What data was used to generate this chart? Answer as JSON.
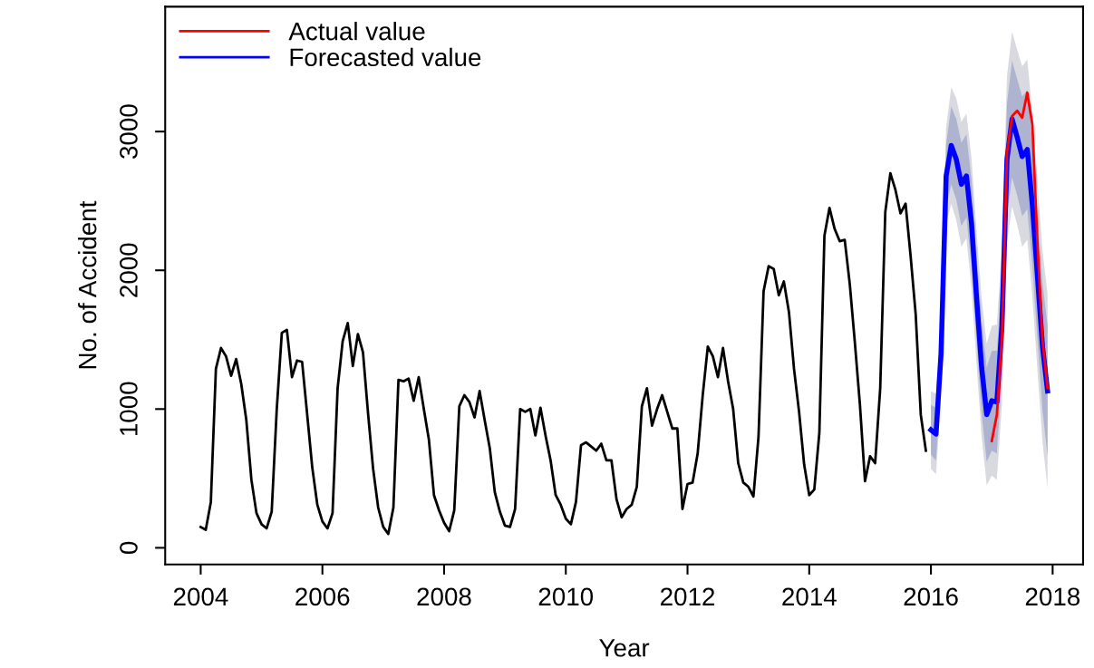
{
  "chart_data": {
    "type": "line",
    "xlabel": "Year",
    "ylabel": "No. of Accident",
    "xlim": [
      "2003-06",
      "2018-07"
    ],
    "ylim": [
      -120,
      3900
    ],
    "xticks": [
      "2004",
      "2006",
      "2008",
      "2010",
      "2012",
      "2014",
      "2016",
      "2018"
    ],
    "yticks": [
      0,
      1000,
      2000,
      3000
    ],
    "grid": false,
    "legend": "top left",
    "line_style": "solid",
    "marker": "none",
    "x": [
      "2004-01",
      "2004-02",
      "2004-03",
      "2004-04",
      "2004-05",
      "2004-06",
      "2004-07",
      "2004-08",
      "2004-09",
      "2004-10",
      "2004-11",
      "2004-12",
      "2005-01",
      "2005-02",
      "2005-03",
      "2005-04",
      "2005-05",
      "2005-06",
      "2005-07",
      "2005-08",
      "2005-09",
      "2005-10",
      "2005-11",
      "2005-12",
      "2006-01",
      "2006-02",
      "2006-03",
      "2006-04",
      "2006-05",
      "2006-06",
      "2006-07",
      "2006-08",
      "2006-09",
      "2006-10",
      "2006-11",
      "2006-12",
      "2007-01",
      "2007-02",
      "2007-03",
      "2007-04",
      "2007-05",
      "2007-06",
      "2007-07",
      "2007-08",
      "2007-09",
      "2007-10",
      "2007-11",
      "2007-12",
      "2008-01",
      "2008-02",
      "2008-03",
      "2008-04",
      "2008-05",
      "2008-06",
      "2008-07",
      "2008-08",
      "2008-09",
      "2008-10",
      "2008-11",
      "2008-12",
      "2009-01",
      "2009-02",
      "2009-03",
      "2009-04",
      "2009-05",
      "2009-06",
      "2009-07",
      "2009-08",
      "2009-09",
      "2009-10",
      "2009-11",
      "2009-12",
      "2010-01",
      "2010-02",
      "2010-03",
      "2010-04",
      "2010-05",
      "2010-06",
      "2010-07",
      "2010-08",
      "2010-09",
      "2010-10",
      "2010-11",
      "2010-12",
      "2011-01",
      "2011-02",
      "2011-03",
      "2011-04",
      "2011-05",
      "2011-06",
      "2011-07",
      "2011-08",
      "2011-09",
      "2011-10",
      "2011-11",
      "2011-12",
      "2012-01",
      "2012-02",
      "2012-03",
      "2012-04",
      "2012-05",
      "2012-06",
      "2012-07",
      "2012-08",
      "2012-09",
      "2012-10",
      "2012-11",
      "2012-12",
      "2013-01",
      "2013-02",
      "2013-03",
      "2013-04",
      "2013-05",
      "2013-06",
      "2013-07",
      "2013-08",
      "2013-09",
      "2013-10",
      "2013-11",
      "2013-12",
      "2014-01",
      "2014-02",
      "2014-03",
      "2014-04",
      "2014-05",
      "2014-06",
      "2014-07",
      "2014-08",
      "2014-09",
      "2014-10",
      "2014-11",
      "2014-12",
      "2015-01",
      "2015-02",
      "2015-03",
      "2015-04",
      "2015-05",
      "2015-06",
      "2015-07",
      "2015-08",
      "2015-09",
      "2015-10",
      "2015-11",
      "2015-12"
    ],
    "series": [
      {
        "color": "#000000",
        "values": [
          150,
          130,
          330,
          1290,
          1440,
          1380,
          1240,
          1360,
          1180,
          920,
          490,
          250,
          170,
          140,
          260,
          1000,
          1550,
          1570,
          1230,
          1350,
          1340,
          960,
          580,
          310,
          190,
          140,
          250,
          1150,
          1490,
          1620,
          1310,
          1540,
          1410,
          970,
          570,
          290,
          150,
          100,
          290,
          1210,
          1200,
          1220,
          1060,
          1230,
          1000,
          780,
          380,
          270,
          180,
          120,
          270,
          1020,
          1100,
          1050,
          940,
          1130,
          920,
          720,
          400,
          260,
          160,
          150,
          280,
          1000,
          980,
          1000,
          810,
          1010,
          810,
          630,
          380,
          310,
          210,
          170,
          330,
          740,
          760,
          730,
          700,
          750,
          630,
          630,
          350,
          220,
          280,
          310,
          440,
          1020,
          1150,
          880,
          1000,
          1100,
          980,
          860,
          860,
          280,
          460,
          470,
          680,
          1100,
          1450,
          1380,
          1230,
          1440,
          1200,
          1000,
          610,
          470,
          440,
          370,
          800,
          1850,
          2030,
          2010,
          1820,
          1920,
          1700,
          1290,
          980,
          600,
          380,
          420,
          830,
          2250,
          2450,
          2300,
          2210,
          2220,
          1900,
          1480,
          1030,
          480,
          660,
          610,
          1150,
          2420,
          2700,
          2580,
          2410,
          2480,
          2100,
          1680,
          960,
          700
        ]
      },
      {
        "color": "#d9d9e0",
        "x": [
          "2016-01",
          "2016-02",
          "2016-03",
          "2016-04",
          "2016-05",
          "2016-06",
          "2016-07",
          "2016-08",
          "2016-09",
          "2016-10",
          "2016-11",
          "2016-12",
          "2017-01",
          "2017-02",
          "2017-03",
          "2017-04",
          "2017-05",
          "2017-06",
          "2017-07",
          "2017-08",
          "2017-09",
          "2017-10",
          "2017-11",
          "2017-12"
        ],
        "values": [
          null,
          null,
          null,
          null,
          null,
          null,
          null,
          null,
          null,
          null,
          null,
          null,
          null,
          null,
          null,
          null,
          null,
          null,
          null,
          null,
          null,
          null,
          null,
          null
        ],
        "lower": [
          570,
          530,
          1080,
          2330,
          2480,
          2360,
          2170,
          2230,
          1870,
          1320,
          800,
          450,
          520,
          490,
          1030,
          2200,
          2460,
          2330,
          2170,
          2220,
          1810,
          1280,
          760,
          430
        ],
        "upper": [
          1130,
          1110,
          1720,
          3030,
          3320,
          3240,
          3070,
          3130,
          2810,
          2280,
          1800,
          1470,
          1600,
          1610,
          2170,
          3400,
          3720,
          3590,
          3470,
          3520,
          3130,
          2640,
          2140,
          1830
        ]
      },
      {
        "color": "#aeb4d0",
        "x": [
          "2016-01",
          "2016-02",
          "2016-03",
          "2016-04",
          "2016-05",
          "2016-06",
          "2016-07",
          "2016-08",
          "2016-09",
          "2016-10",
          "2016-11",
          "2016-12",
          "2017-01",
          "2017-02",
          "2017-03",
          "2017-04",
          "2017-05",
          "2017-06",
          "2017-07",
          "2017-08",
          "2017-09",
          "2017-10",
          "2017-11",
          "2017-12"
        ],
        "values": [
          null,
          null,
          null,
          null,
          null,
          null,
          null,
          null,
          null,
          null,
          null,
          null,
          null,
          null,
          null,
          null,
          null,
          null,
          null,
          null,
          null,
          null,
          null,
          null
        ],
        "lower": [
          670,
          630,
          1190,
          2450,
          2620,
          2510,
          2320,
          2380,
          2030,
          1480,
          970,
          620,
          700,
          680,
          1220,
          2400,
          2670,
          2540,
          2390,
          2440,
          2030,
          1510,
          990,
          660
        ],
        "upper": [
          1030,
          1010,
          1610,
          2910,
          3180,
          3090,
          2920,
          2980,
          2650,
          2120,
          1630,
          1300,
          1420,
          1420,
          1980,
          3200,
          3510,
          3380,
          3250,
          3300,
          2910,
          2410,
          1910,
          1600
        ]
      },
      {
        "name": "Forecasted value",
        "color": "#0000ff",
        "x": [
          "2016-01",
          "2016-02",
          "2016-03",
          "2016-04",
          "2016-05",
          "2016-06",
          "2016-07",
          "2016-08",
          "2016-09",
          "2016-10",
          "2016-11",
          "2016-12",
          "2017-01",
          "2017-02",
          "2017-03",
          "2017-04",
          "2017-05",
          "2017-06",
          "2017-07",
          "2017-08",
          "2017-09",
          "2017-10",
          "2017-11",
          "2017-12"
        ],
        "values": [
          850,
          820,
          1400,
          2680,
          2900,
          2800,
          2620,
          2680,
          2340,
          1800,
          1300,
          960,
          1060,
          1050,
          1600,
          2800,
          3090,
          2960,
          2820,
          2870,
          2470,
          1960,
          1450,
          1130
        ]
      },
      {
        "name": "Actual value",
        "color": "#ff0000",
        "x": [
          "2017-01",
          "2017-02",
          "2017-03",
          "2017-04",
          "2017-05",
          "2017-06",
          "2017-07",
          "2017-08",
          "2017-09",
          "2017-10",
          "2017-11",
          "2017-12"
        ],
        "values": [
          770,
          960,
          1500,
          2850,
          3110,
          3150,
          3100,
          3280,
          3050,
          2200,
          1500,
          1150
        ]
      }
    ]
  }
}
